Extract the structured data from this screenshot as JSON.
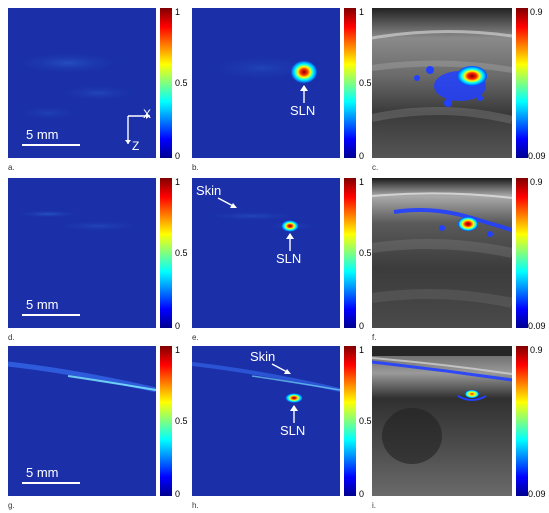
{
  "panels": [
    {
      "id": "a",
      "letter": "a.",
      "kind": "pa",
      "scalebar": "5 mm",
      "axes": {
        "x": "X",
        "z": "Z"
      },
      "colorbar": {
        "max": "1",
        "mid": "0.5",
        "min": "0"
      }
    },
    {
      "id": "b",
      "letter": "b.",
      "kind": "pa",
      "annotations": {
        "sln": "SLN"
      },
      "colorbar": {
        "max": "1",
        "mid": "0.5",
        "min": "0"
      }
    },
    {
      "id": "c",
      "letter": "c.",
      "kind": "us",
      "colorbar": {
        "max": "0.9",
        "min": "0.09"
      }
    },
    {
      "id": "d",
      "letter": "d.",
      "kind": "pa",
      "scalebar": "5 mm",
      "colorbar": {
        "max": "1",
        "mid": "0.5",
        "min": "0"
      }
    },
    {
      "id": "e",
      "letter": "e.",
      "kind": "pa",
      "annotations": {
        "skin": "Skin",
        "sln": "SLN"
      },
      "colorbar": {
        "max": "1",
        "mid": "0.5",
        "min": "0"
      }
    },
    {
      "id": "f",
      "letter": "f.",
      "kind": "us",
      "colorbar": {
        "max": "0.9",
        "min": "0.09"
      }
    },
    {
      "id": "g",
      "letter": "g.",
      "kind": "pa",
      "scalebar": "5 mm",
      "colorbar": {
        "max": "1",
        "mid": "0.5",
        "min": "0"
      }
    },
    {
      "id": "h",
      "letter": "h.",
      "kind": "pa",
      "annotations": {
        "skin": "Skin",
        "sln": "SLN"
      },
      "colorbar": {
        "max": "1",
        "mid": "0.5",
        "min": "0"
      }
    },
    {
      "id": "i",
      "letter": "i.",
      "kind": "us",
      "colorbar": {
        "max": "0.9",
        "min": "0.09"
      }
    }
  ],
  "colors": {
    "pa_background": "#1a2fa8",
    "colormap": [
      "#00008f",
      "#0000ff",
      "#0080ff",
      "#00ffff",
      "#80ff80",
      "#ffff00",
      "#ff8000",
      "#ff0000",
      "#800000"
    ],
    "annotation_text": "#ffffff"
  }
}
